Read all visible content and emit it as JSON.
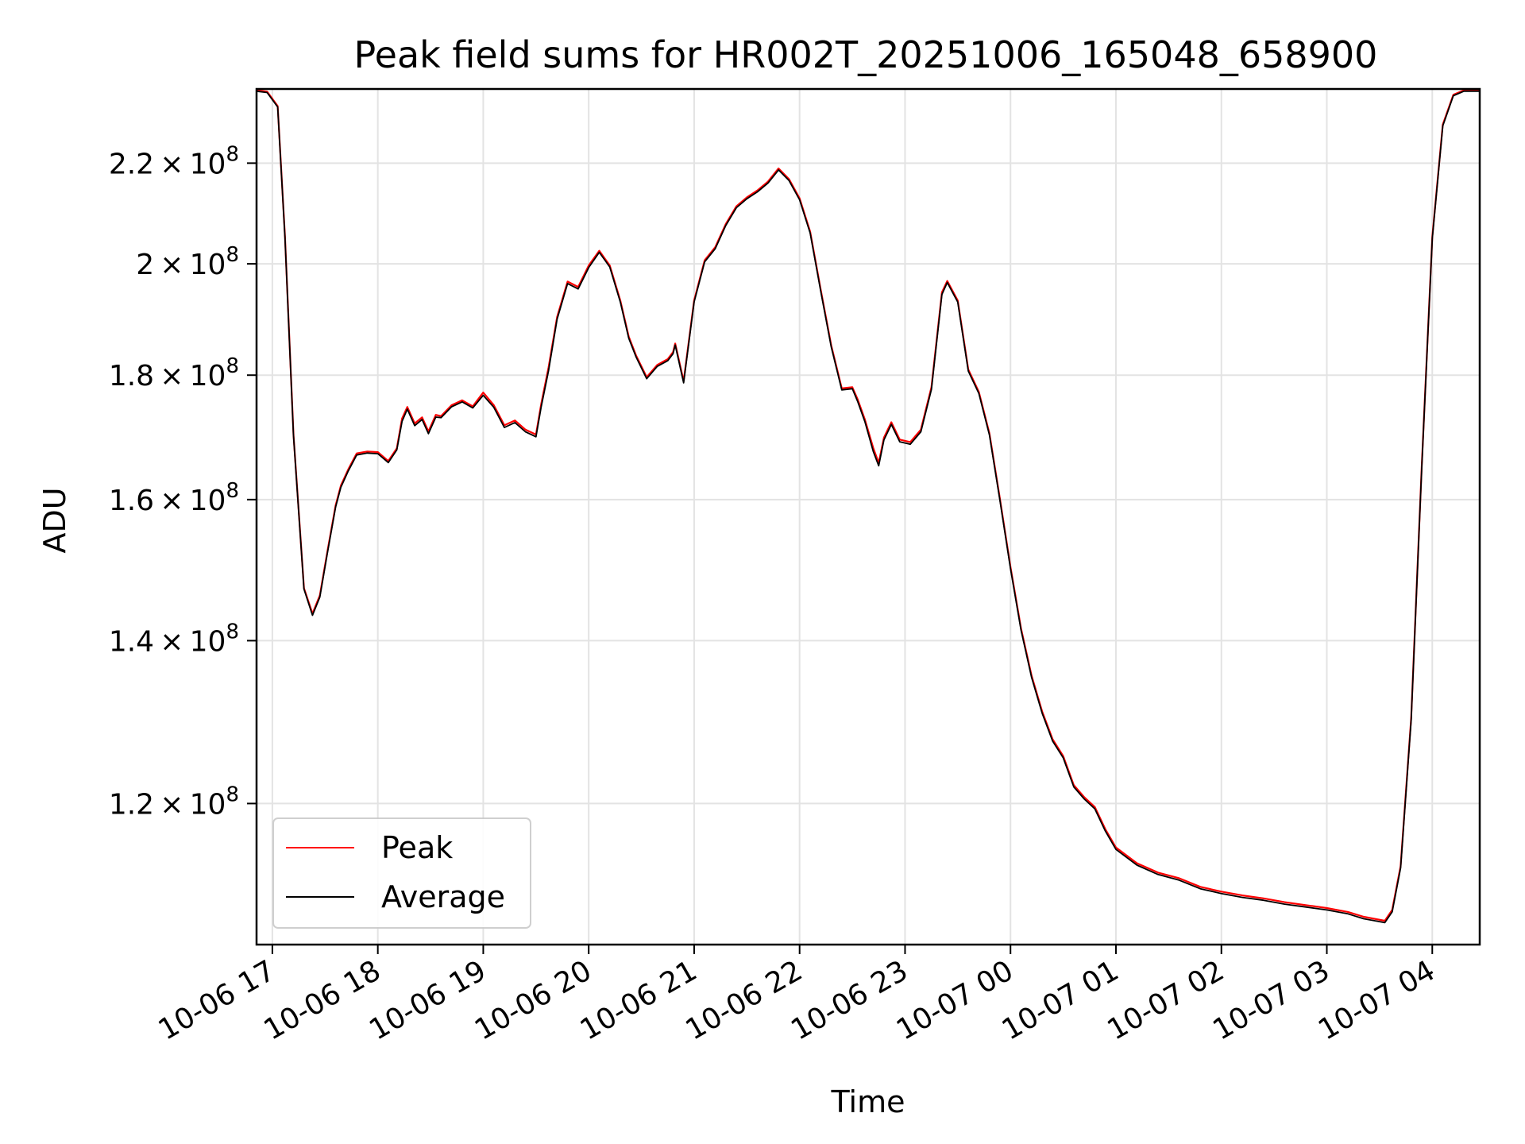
{
  "chart_data": {
    "type": "line",
    "title": "Peak field sums for HR002T_20251006_165048_658900",
    "xlabel": "Time",
    "ylabel": "ADU",
    "yscale": "log",
    "grid": true,
    "legend_position": "lower-left",
    "xlim": [
      16.85,
      28.45
    ],
    "ylim": [
      105000000,
      236000000
    ],
    "x_ticks": [
      {
        "value": 17,
        "label": "10-06 17"
      },
      {
        "value": 18,
        "label": "10-06 18"
      },
      {
        "value": 19,
        "label": "10-06 19"
      },
      {
        "value": 20,
        "label": "10-06 20"
      },
      {
        "value": 21,
        "label": "10-06 21"
      },
      {
        "value": 22,
        "label": "10-06 22"
      },
      {
        "value": 23,
        "label": "10-06 23"
      },
      {
        "value": 24,
        "label": "10-07 00"
      },
      {
        "value": 25,
        "label": "10-07 01"
      },
      {
        "value": 26,
        "label": "10-07 02"
      },
      {
        "value": 27,
        "label": "10-07 03"
      },
      {
        "value": 28,
        "label": "10-07 04"
      }
    ],
    "y_ticks": [
      {
        "value": 120000000,
        "mantissa": "1.2",
        "base": "10",
        "exp": "8"
      },
      {
        "value": 140000000,
        "mantissa": "1.4",
        "base": "10",
        "exp": "8"
      },
      {
        "value": 160000000,
        "mantissa": "1.6",
        "base": "10",
        "exp": "8"
      },
      {
        "value": 180000000,
        "mantissa": "1.8",
        "base": "10",
        "exp": "8"
      },
      {
        "value": 200000000,
        "mantissa": "2",
        "base": "10",
        "exp": "8"
      },
      {
        "value": 220000000,
        "mantissa": "2.2",
        "base": "10",
        "exp": "8"
      }
    ],
    "x_hours": [
      16.85,
      16.95,
      17.05,
      17.12,
      17.2,
      17.3,
      17.38,
      17.45,
      17.52,
      17.6,
      17.65,
      17.72,
      17.8,
      17.9,
      18.0,
      18.1,
      18.18,
      18.23,
      18.28,
      18.35,
      18.42,
      18.48,
      18.55,
      18.6,
      18.7,
      18.8,
      18.9,
      19.0,
      19.1,
      19.2,
      19.3,
      19.4,
      19.5,
      19.55,
      19.62,
      19.7,
      19.8,
      19.9,
      20.0,
      20.1,
      20.2,
      20.3,
      20.38,
      20.45,
      20.55,
      20.65,
      20.75,
      20.8,
      20.82,
      20.9,
      21.0,
      21.1,
      21.2,
      21.3,
      21.4,
      21.5,
      21.6,
      21.7,
      21.8,
      21.9,
      22.0,
      22.1,
      22.2,
      22.3,
      22.4,
      22.5,
      22.55,
      22.62,
      22.7,
      22.75,
      22.8,
      22.87,
      22.95,
      23.05,
      23.15,
      23.25,
      23.35,
      23.4,
      23.5,
      23.6,
      23.7,
      23.8,
      23.9,
      24.0,
      24.1,
      24.2,
      24.3,
      24.4,
      24.5,
      24.6,
      24.7,
      24.8,
      24.9,
      25.0,
      25.2,
      25.4,
      25.6,
      25.8,
      26.0,
      26.2,
      26.4,
      26.6,
      26.8,
      27.0,
      27.2,
      27.35,
      27.45,
      27.55,
      27.62,
      27.7,
      27.8,
      27.9,
      28.0,
      28.1,
      28.2,
      28.3,
      28.45
    ],
    "series": [
      {
        "name": "Peak",
        "color": "#ff0000",
        "values": [
          235500000,
          235200000,
          232000000,
          205000000,
          170000000,
          147000000,
          143500000,
          146000000,
          152000000,
          159000000,
          162000000,
          164500000,
          167000000,
          167300000,
          167200000,
          165800000,
          167800000,
          172600000,
          174500000,
          171800000,
          172800000,
          170500000,
          173200000,
          173000000,
          174800000,
          175600000,
          174600000,
          176900000,
          174800000,
          171500000,
          172300000,
          170800000,
          170000000,
          175000000,
          181200000,
          190000000,
          196500000,
          195500000,
          199500000,
          202300000,
          199500000,
          193000000,
          186500000,
          183200000,
          179500000,
          181600000,
          182600000,
          183800000,
          185300000,
          178800000,
          193000000,
          200500000,
          203000000,
          207500000,
          211000000,
          212800000,
          214200000,
          216000000,
          218700000,
          216500000,
          212600000,
          206000000,
          195000000,
          185000000,
          177600000,
          177800000,
          175800000,
          172400000,
          167800000,
          165500000,
          169500000,
          172000000,
          169200000,
          168800000,
          170800000,
          177800000,
          194500000,
          196600000,
          193000000,
          180800000,
          177000000,
          170200000,
          160000000,
          150000000,
          141500000,
          135300000,
          130800000,
          127400000,
          125400000,
          122000000,
          120600000,
          119500000,
          117000000,
          115000000,
          113300000,
          112300000,
          111700000,
          110800000,
          110300000,
          109900000,
          109600000,
          109200000,
          108900000,
          108600000,
          108200000,
          107700000,
          107500000,
          107300000,
          108400000,
          113000000,
          130000000,
          165000000,
          205000000,
          228000000,
          234500000,
          235500000,
          235500000
        ]
      },
      {
        "name": "Average",
        "color": "#000000",
        "values": [
          235500000,
          235200000,
          232000000,
          205000000,
          170000000,
          147000000,
          143400000,
          145900000,
          151900000,
          158900000,
          161900000,
          164400000,
          166900000,
          167200000,
          167100000,
          165700000,
          167700000,
          172300000,
          174300000,
          171600000,
          172600000,
          170300000,
          173000000,
          172900000,
          174700000,
          175500000,
          174500000,
          176600000,
          174600000,
          171300000,
          172100000,
          170600000,
          169800000,
          174700000,
          180800000,
          189800000,
          196300000,
          195300000,
          199300000,
          202200000,
          199400000,
          192900000,
          186400000,
          183100000,
          179400000,
          181500000,
          182500000,
          183700000,
          185200000,
          178700000,
          192900000,
          200400000,
          202900000,
          207400000,
          210900000,
          212700000,
          214100000,
          215900000,
          218600000,
          216400000,
          212500000,
          205900000,
          194900000,
          184900000,
          177500000,
          177700000,
          175600000,
          172200000,
          167400000,
          165200000,
          169300000,
          171800000,
          169000000,
          168600000,
          170600000,
          177600000,
          194300000,
          196500000,
          192900000,
          180700000,
          176900000,
          170100000,
          159900000,
          149900000,
          141400000,
          135200000,
          130700000,
          127300000,
          125300000,
          121900000,
          120500000,
          119400000,
          116900000,
          114900000,
          113200000,
          112200000,
          111600000,
          110700000,
          110200000,
          109800000,
          109500000,
          109100000,
          108800000,
          108500000,
          108100000,
          107600000,
          107400000,
          107200000,
          108300000,
          112900000,
          129900000,
          164900000,
          204900000,
          227900000,
          234500000,
          235500000,
          235500000
        ]
      }
    ]
  }
}
